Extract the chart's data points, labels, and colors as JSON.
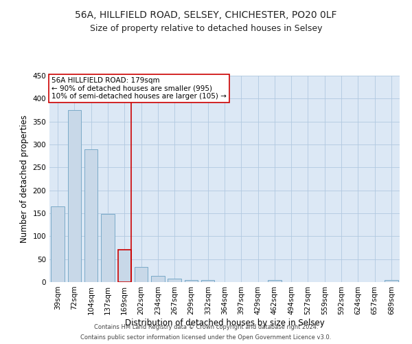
{
  "title": "56A, HILLFIELD ROAD, SELSEY, CHICHESTER, PO20 0LF",
  "subtitle": "Size of property relative to detached houses in Selsey",
  "xlabel": "Distribution of detached houses by size in Selsey",
  "ylabel": "Number of detached properties",
  "footer1": "Contains HM Land Registry data © Crown copyright and database right 2024.",
  "footer2": "Contains public sector information licensed under the Open Government Licence v3.0.",
  "categories": [
    "39sqm",
    "72sqm",
    "104sqm",
    "137sqm",
    "169sqm",
    "202sqm",
    "234sqm",
    "267sqm",
    "299sqm",
    "332sqm",
    "364sqm",
    "397sqm",
    "429sqm",
    "462sqm",
    "494sqm",
    "527sqm",
    "559sqm",
    "592sqm",
    "624sqm",
    "657sqm",
    "689sqm"
  ],
  "values": [
    165,
    375,
    290,
    148,
    70,
    33,
    13,
    7,
    5,
    4,
    0,
    0,
    0,
    4,
    0,
    0,
    0,
    0,
    0,
    0,
    4
  ],
  "bar_color": "#c8d8e8",
  "bar_edge_color": "#7aaac8",
  "highlight_bar_index": 4,
  "highlight_bar_edge_color": "#cc0000",
  "vline_color": "#cc0000",
  "annotation_text_line1": "56A HILLFIELD ROAD: 179sqm",
  "annotation_text_line2": "← 90% of detached houses are smaller (995)",
  "annotation_text_line3": "10% of semi-detached houses are larger (105) →",
  "annotation_box_color": "#ffffff",
  "annotation_box_edge_color": "#cc0000",
  "ylim": [
    0,
    450
  ],
  "yticks": [
    0,
    50,
    100,
    150,
    200,
    250,
    300,
    350,
    400,
    450
  ],
  "background_color": "#ffffff",
  "plot_bg_color": "#dce8f5",
  "grid_color": "#b0c8e0",
  "title_fontsize": 10,
  "subtitle_fontsize": 9,
  "axis_label_fontsize": 8.5,
  "tick_fontsize": 7.5,
  "annotation_fontsize": 7.5,
  "footer_fontsize": 6
}
